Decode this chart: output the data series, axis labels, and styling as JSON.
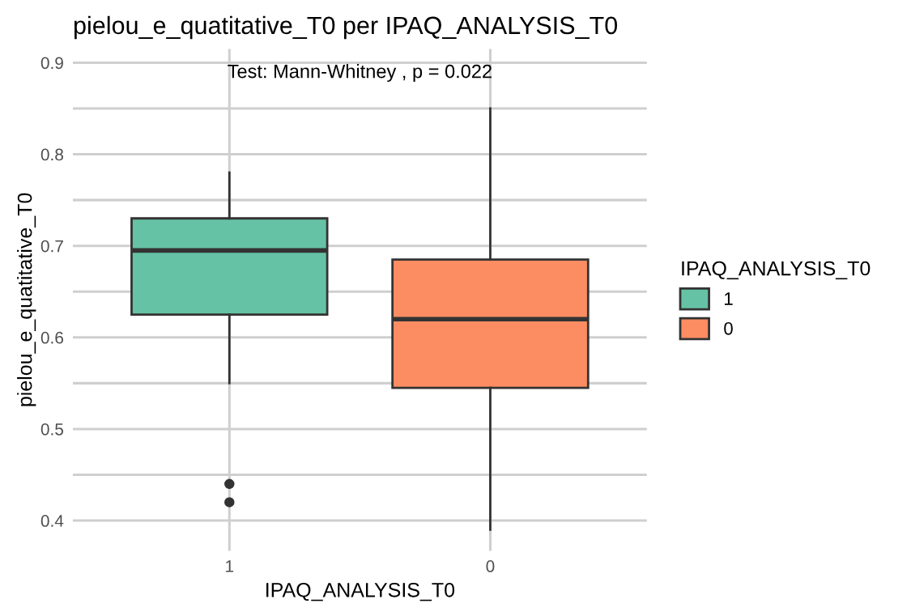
{
  "chart_data": {
    "type": "box",
    "title": "pielou_e_quatitative_T0 per IPAQ_ANALYSIS_T0",
    "xlabel": "IPAQ_ANALYSIS_T0",
    "ylabel": "pielou_e_quatitative_T0",
    "legend_title": "IPAQ_ANALYSIS_T0",
    "categories": [
      "1",
      "0"
    ],
    "series": [
      {
        "name": "1",
        "color": "#66c2a5",
        "boxes": [
          {
            "low": 0.55,
            "q1": 0.625,
            "median": 0.695,
            "q3": 0.73,
            "high": 0.78,
            "outliers": [
              0.44,
              0.42
            ]
          },
          null
        ]
      },
      {
        "name": "0",
        "color": "#fc8d62",
        "boxes": [
          null,
          {
            "low": 0.39,
            "q1": 0.545,
            "median": 0.62,
            "q3": 0.685,
            "high": 0.85
          }
        ]
      }
    ],
    "ylim": [
      0.367,
      0.915
    ],
    "yticks": [
      0.4,
      {
        "value": 0.45,
        "label": null
      },
      0.5,
      {
        "value": 0.55,
        "label": null
      },
      0.6,
      {
        "value": 0.65,
        "label": null
      },
      0.7,
      {
        "value": 0.75,
        "label": null
      },
      0.8,
      {
        "value": 0.85,
        "label": null
      },
      0.9
    ],
    "grid": true,
    "legend": "right",
    "annotations": [
      "Test: Mann-Whitney , p = 0.022"
    ]
  }
}
